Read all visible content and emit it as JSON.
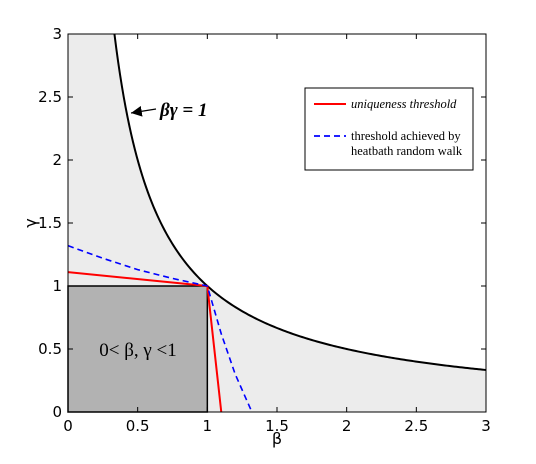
{
  "chart_data": {
    "type": "line",
    "xlabel": "β",
    "ylabel": "γ",
    "xlim": [
      0,
      3
    ],
    "ylim": [
      0,
      3
    ],
    "x_ticks": [
      "0",
      "0.5",
      "1",
      "1.5",
      "2",
      "2.5",
      "3"
    ],
    "y_ticks": [
      "0",
      "0.5",
      "1",
      "1.5",
      "2",
      "2.5",
      "3"
    ],
    "grid": false,
    "legend_position": "top-right",
    "regions": [
      {
        "label": "0< β, γ <1",
        "shape": "square",
        "x": [
          0,
          1
        ],
        "y": [
          0,
          1
        ],
        "color": "#b2b2b2"
      },
      {
        "label": "",
        "shape": "under-hyperbola",
        "color": "#ececec"
      }
    ],
    "series": [
      {
        "name": "",
        "label": "βγ = 1",
        "style": "solid",
        "color": "#000000",
        "curve": "hyperbola",
        "x": [
          0.333,
          0.4,
          0.5,
          0.75,
          1,
          1.5,
          2,
          2.5,
          3
        ],
        "y": [
          3,
          2.5,
          2,
          1.333,
          1,
          0.667,
          0.5,
          0.4,
          0.333
        ]
      },
      {
        "name": "uniqueness threshold",
        "style": "solid",
        "color": "#ff0000",
        "x": [
          0,
          1,
          1.1
        ],
        "y": [
          1.11,
          1,
          0
        ]
      },
      {
        "name": "threshold achieved by heatbath random walk",
        "legend_lines": [
          "threshold achieved by",
          "heatbath random walk"
        ],
        "style": "dashed",
        "color": "#0000ff",
        "x": [
          0,
          0.25,
          0.5,
          0.75,
          1,
          1.1,
          1.2,
          1.32
        ],
        "y": [
          1.32,
          1.22,
          1.13,
          1.06,
          1,
          0.62,
          0.3,
          0
        ]
      }
    ],
    "annotations": [
      {
        "text": "βγ = 1",
        "arrow_to": [
          0.44,
          2.4
        ]
      },
      {
        "text": "0< β, γ <1",
        "at": [
          0.5,
          0.5
        ]
      }
    ]
  }
}
